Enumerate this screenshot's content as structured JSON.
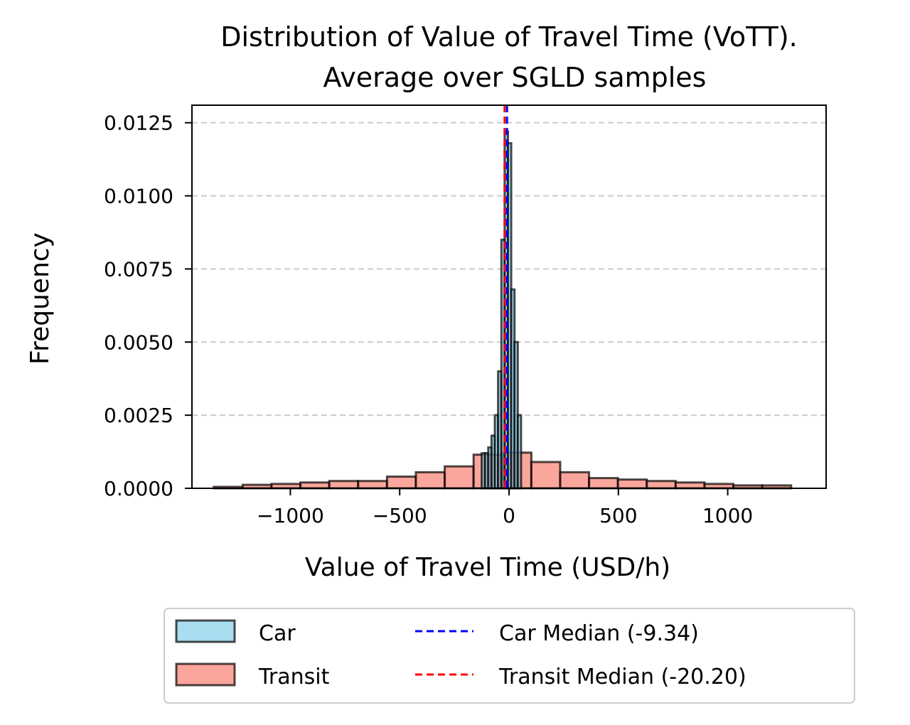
{
  "chart_data": {
    "type": "histogram",
    "title_lines": [
      "Distribution of Value of Travel Time (VoTT).",
      "Average over SGLD samples"
    ],
    "xlabel": "Value of Travel Time (USD/h)",
    "ylabel": "Frequency",
    "xlim": [
      -1450,
      1450
    ],
    "ylim": [
      0,
      0.0131
    ],
    "x_ticks": [
      -1000,
      -500,
      0,
      500,
      1000
    ],
    "x_tick_labels": [
      "−1000",
      "−500",
      "0",
      "500",
      "1000"
    ],
    "y_ticks": [
      0,
      0.0025,
      0.005,
      0.0075,
      0.01,
      0.0125
    ],
    "y_tick_labels": [
      "0.0000",
      "0.0025",
      "0.0050",
      "0.0075",
      "0.0100",
      "0.0125"
    ],
    "grid": "y dashed",
    "colors": {
      "car": "#87ceeb",
      "transit": "#fa8072",
      "car_median": "#0000ff",
      "transit_median": "#ff0000",
      "edge": "#000000",
      "grid": "#cccccc"
    },
    "series": [
      {
        "name": "Car",
        "bin_edges": [
          -125,
          -110,
          -95,
          -80,
          -65,
          -50,
          -35,
          -20,
          -5,
          10,
          25,
          40,
          55
        ],
        "values": [
          0.0012,
          0.0012,
          0.0014,
          0.0018,
          0.0025,
          0.004,
          0.0085,
          0.0122,
          0.0118,
          0.0068,
          0.005,
          0.0025
        ]
      },
      {
        "name": "Transit",
        "bin_edges": [
          -1350,
          -1218,
          -1086,
          -954,
          -822,
          -690,
          -558,
          -426,
          -294,
          -162,
          -30,
          102,
          234,
          366,
          498,
          630,
          762,
          894,
          1026,
          1158,
          1290
        ],
        "values": [
          5e-05,
          0.00012,
          0.00015,
          0.0002,
          0.00025,
          0.00025,
          0.0004,
          0.00055,
          0.00075,
          0.00115,
          0.00122,
          0.0009,
          0.00055,
          0.00035,
          0.0003,
          0.00025,
          0.0002,
          0.00015,
          0.0001,
          0.0001
        ]
      }
    ],
    "medians": [
      {
        "name": "Car Median (-9.34)",
        "value": -9.34
      },
      {
        "name": "Transit Median (-20.20)",
        "value": -20.2
      }
    ],
    "legend": {
      "placement": "below",
      "entries": [
        "Car",
        "Transit",
        "Car Median (-9.34)",
        "Transit Median (-20.20)"
      ]
    }
  }
}
